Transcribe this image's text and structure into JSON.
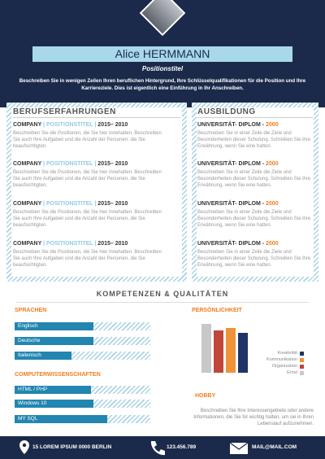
{
  "header": {
    "name": "Alice HERMMANN",
    "title": "Positionstitel",
    "summary": "Beschreiben Sie in wenigen Zeilen Ihren beruflichen Hintergrund, Ihre Schlüsselqualifikationen für die Position und Ihre Karriereziele. Dies ist eigentlich eine Einführung in Ihr Anschreiben."
  },
  "experience": {
    "heading": "BERUFSERFAHRUNGEN",
    "entries": [
      {
        "company": "COMPANY",
        "position": "| POSITIONSTITEL |",
        "years": "2015– 2010",
        "text": "Beschreiben Sie die Positionen, die Sie hier innehatten. Beschreiben Sie auch Ihre Aufgaben und die Anzahl der Personen, die Sie beaufsichtigten."
      },
      {
        "company": "COMPANY",
        "position": "| POSITIONSTITEL |",
        "years": "2015– 2010",
        "text": "Beschreiben Sie die Positionen, die Sie hier innehatten. Beschreiben Sie auch Ihre Aufgaben und die Anzahl der Personen, die Sie beaufsichtigten."
      },
      {
        "company": "COMPANY",
        "position": "| POSITIONSTITEL |",
        "years": "2015– 2010",
        "text": "Beschreiben Sie die Positionen, die Sie hier innehatten. Beschreiben Sie auch Ihre Aufgaben und die Anzahl der Personen, die Sie beaufsichtigten."
      },
      {
        "company": "COMPANY",
        "position": "| POSITIONSTITEL |",
        "years": "2015– 2010",
        "text": "Beschreiben Sie die Positionen, die Sie hier innehatten. Beschreiben Sie auch Ihre Aufgaben und die Anzahl der Personen, die Sie beaufsichtigten."
      }
    ]
  },
  "education": {
    "heading": "AUSBILDUNG",
    "entries": [
      {
        "degree": "UNIVERSITÄT- DIPLOM -",
        "year": "2000",
        "text": "Beschreiben Sie in einer Zeile die Ziele und Besonderheiten dieser Schulung. Schreiben Sie ihre Erwähnung, wenn Sie eine hatten."
      },
      {
        "degree": "UNIVERSITÄT- DIPLOM -",
        "year": "2000",
        "text": "Beschreiben Sie in einer Zeile die Ziele und Besonderheiten dieser Schulung. Schreiben Sie ihre Erwähnung, wenn Sie eine hatten."
      },
      {
        "degree": "UNIVERSITÄT- DIPLOM -",
        "year": "2000",
        "text": "Beschreiben Sie in einer Zeile die Ziele und Besonderheiten dieser Schulung. Schreiben Sie ihre Erwähnung, wenn Sie eine hatten."
      },
      {
        "degree": "UNIVERSITÄT- DIPLOM -",
        "year": "2000",
        "text": "Beschreiben Sie in einer Zeile die Ziele und Besonderheiten dieser Schulung. Schreiben Sie ihre Erwähnung, wenn Sie eine hatten."
      }
    ]
  },
  "skills": {
    "heading": "KOMPETENZEN & QUALITÄTEN",
    "languages": {
      "heading": "SPRACHEN",
      "items": [
        {
          "name": "Englisch",
          "value": 58
        },
        {
          "name": "Deutsche",
          "value": 58
        },
        {
          "name": "Italienisch",
          "value": 42
        }
      ]
    },
    "computer": {
      "heading": "COMPUTERWISSENSCHAFTEN",
      "items": [
        {
          "name": "HTML / PHP",
          "value": 56
        },
        {
          "name": "Windows 10",
          "value": 58
        },
        {
          "name": "MY SQL",
          "value": 68
        }
      ]
    },
    "personality": {
      "heading": "PERSÖNLICHKEIT",
      "ylim": [
        0,
        100
      ],
      "categories": [
        "Ernst",
        "Organisation",
        "Kommunikation",
        "Kreativität"
      ],
      "colors": [
        "#c8c8c8",
        "#c0463a",
        "#f0923a",
        "#1e3466"
      ],
      "values": [
        92,
        80,
        85,
        75
      ]
    },
    "hobby": {
      "heading": "HOBBY",
      "text": "Beschreiben Sie Ihre Interessengebiete oder andere Informationen, die Sie für wichtig halten, um sie in Ihren Lebenslauf aufzunehmen."
    }
  },
  "footer": {
    "address": "15 LOREM IPSUM 0000 BERLIN",
    "phone": "123.456.789",
    "email": "MAIL@MAIL.COM"
  }
}
